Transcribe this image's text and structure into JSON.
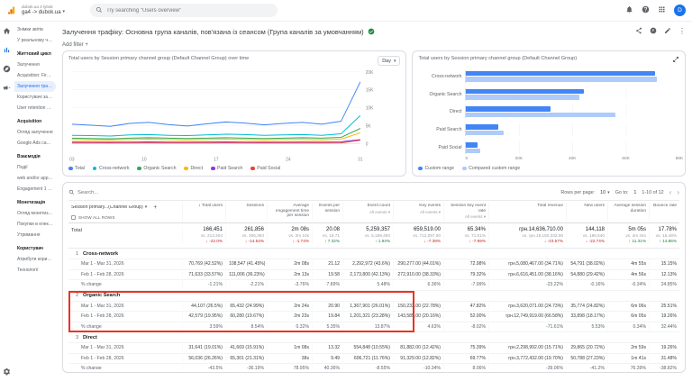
{
  "colors": {
    "accent": "#1a73e8",
    "positive": "#188038",
    "negative": "#c5221f",
    "bar_current": "#4285f4",
    "bar_compared": "#aecbfa",
    "annotation": "#ea3323"
  },
  "topbar": {
    "account_line1": "dubok.ua 3 lybok",
    "account_line2": "ga4 -> dubok.ua",
    "search_placeholder": "Try searching \"Users overview\"",
    "avatar_initial": "D"
  },
  "sidebar": {
    "items": [
      {
        "label": "Знімки звітів",
        "type": "item"
      },
      {
        "label": "У реальному часі",
        "type": "item"
      },
      {
        "label": "Життєвий цикл",
        "type": "section"
      },
      {
        "label": "Залучення",
        "type": "item"
      },
      {
        "label": "Acquisition: First user ...",
        "type": "item"
      },
      {
        "label": "Залучення трафіку: Осн...",
        "type": "item",
        "active": true
      },
      {
        "label": "Користувачі за регіона...",
        "type": "item"
      },
      {
        "label": "User retention cohorts",
        "type": "item"
      },
      {
        "label": "Acquisition",
        "type": "section"
      },
      {
        "label": "Огляд залучення",
        "type": "item"
      },
      {
        "label": "Google Ads campaign",
        "type": "item"
      },
      {
        "label": "Взаємодія",
        "type": "section"
      },
      {
        "label": "Події",
        "type": "item"
      },
      {
        "label": "web and/or app 1 ...",
        "type": "item"
      },
      {
        "label": "Engagement 1 се...",
        "type": "item"
      },
      {
        "label": "Монетизація",
        "type": "section"
      },
      {
        "label": "Огляд монетизації",
        "type": "item"
      },
      {
        "label": "Покупки в електрон...",
        "type": "item"
      },
      {
        "label": "Утримання",
        "type": "item"
      },
      {
        "label": "Користувач",
        "type": "section"
      },
      {
        "label": "Атрибути користув...",
        "type": "item"
      },
      {
        "label": "Технології",
        "type": "item"
      }
    ]
  },
  "report": {
    "title": "Залучення трафіку: Основна група каналів, пов'язана із сеансом (Група каналів за умовчанням)",
    "add_filter_label": "Add filter +"
  },
  "chart_data": [
    {
      "type": "line",
      "title": "Total users by Session primary channel group (Default Channel Group) over time",
      "granularity": "Day",
      "x": [
        "03",
        "10",
        "17",
        "24",
        "31"
      ],
      "ylim": [
        0,
        20000
      ],
      "yticks": [
        "0",
        "5K",
        "10K",
        "15K",
        "20K"
      ],
      "legend_position": "bottom",
      "series": [
        {
          "name": "Total",
          "color": "#4285f4",
          "values": [
            5400,
            5100,
            4800,
            5600,
            5900,
            5300,
            4900,
            5500,
            6000,
            5700,
            5200,
            5600,
            5900,
            5400,
            6200,
            17200
          ]
        },
        {
          "name": "Cross-network",
          "color": "#03bcd4",
          "values": [
            2300,
            2200,
            2100,
            2400,
            2500,
            2300,
            2200,
            2400,
            2600,
            2500,
            2300,
            2400,
            2500,
            2300,
            2700,
            7800
          ]
        },
        {
          "name": "Organic Search",
          "color": "#34a853",
          "values": [
            1500,
            1400,
            1300,
            1500,
            1600,
            1500,
            1400,
            1500,
            1600,
            1500,
            1400,
            1500,
            1600,
            1500,
            1700,
            4200
          ]
        },
        {
          "name": "Direct",
          "color": "#fbbc04",
          "values": [
            1100,
            1000,
            1000,
            1100,
            1200,
            1100,
            1000,
            1100,
            1200,
            1100,
            1000,
            1100,
            1100,
            1000,
            1200,
            3000
          ]
        },
        {
          "name": "Paid Search",
          "color": "#9334e6",
          "values": [
            420,
            400,
            360,
            410,
            450,
            400,
            390,
            420,
            450,
            410,
            380,
            400,
            420,
            400,
            450,
            1100
          ]
        },
        {
          "name": "Paid Social",
          "color": "#ea4335",
          "values": [
            150,
            140,
            130,
            150,
            160,
            150,
            140,
            150,
            160,
            150,
            140,
            150,
            150,
            140,
            160,
            900
          ]
        }
      ]
    },
    {
      "type": "bar",
      "orientation": "horizontal",
      "title": "Total users by Session primary channel group (Default Channel Group)",
      "categories": [
        "Cross-network",
        "Organic Search",
        "Direct",
        "Paid Search",
        "Paid Social"
      ],
      "xlim": [
        0,
        80000
      ],
      "xticks": [
        "0",
        "20K",
        "40K",
        "60K",
        "80K"
      ],
      "series": [
        {
          "name": "Custom range",
          "color": "#4285f4",
          "values": [
            70769,
            44107,
            31641,
            12064,
            4387
          ]
        },
        {
          "name": "Compared custom range",
          "color": "#aecbfa",
          "values": [
            71633,
            42579,
            56036,
            13885,
            5196
          ]
        }
      ]
    }
  ],
  "table": {
    "search_placeholder": "Search...",
    "rows_per_page_label": "Rows per page:",
    "rows_per_page_value": "10",
    "goto_label": "Go to:",
    "goto_value": "1",
    "range_label": "1-10 of 12",
    "dimension_header": "Session primary...(Channel Group)",
    "show_all_rows_label": "SHOW ALL ROWS",
    "columns": [
      {
        "label": "Total users",
        "sorted": true
      },
      {
        "label": "Sessions"
      },
      {
        "label": "Average engagement time per session"
      },
      {
        "label": "Events per session"
      },
      {
        "label": "Event count",
        "sub": "All events"
      },
      {
        "label": "Key events",
        "sub": "All events"
      },
      {
        "label": "Session key event rate",
        "sub": "All events"
      },
      {
        "label": "Total revenue"
      },
      {
        "label": "New users"
      },
      {
        "label": "Average session duration"
      },
      {
        "label": "Bounce rate"
      }
    ],
    "total_row": {
      "label": "Total",
      "cells": [
        {
          "v": "166,451",
          "vs": "vs. 213,404",
          "chg": "-22.0%",
          "dir": "down"
        },
        {
          "v": "261,856",
          "vs": "vs. 306,393",
          "chg": "-14.54%",
          "dir": "down"
        },
        {
          "v": "2m 08s",
          "vs": "vs. 2m 10s",
          "chg": "-1.74%",
          "dir": "down"
        },
        {
          "v": "20.08",
          "vs": "vs. 18.71",
          "chg": "7.32%",
          "dir": "up"
        },
        {
          "v": "5,259,357",
          "vs": "vs. 5,159,483",
          "chg": "1.94%",
          "dir": "up"
        },
        {
          "v": "659,519.00",
          "vs": "vs. 712,097.00",
          "chg": "-7.38%",
          "dir": "down"
        },
        {
          "v": "65.34%",
          "vs": "vs. 71.01%",
          "chg": "-7.99%",
          "dir": "down"
        },
        {
          "v": "грн.14,636,710.00",
          "vs": "vs. грн.19,150,332.00",
          "chg": "-23.57%",
          "dir": "down"
        },
        {
          "v": "144,118",
          "vs": "vs. 186,540",
          "chg": "-22.74%",
          "dir": "down"
        },
        {
          "v": "5m 05s",
          "vs": "vs. 4m 34s",
          "chg": "11.31%",
          "dir": "up"
        },
        {
          "v": "17.78%",
          "vs": "vs. 15.48%",
          "chg": "14.86%",
          "dir": "up"
        }
      ]
    },
    "groups": [
      {
        "index": "1",
        "name": "Cross-network",
        "annotated": false,
        "rows": [
          {
            "label": "Mar 1 - Mar 31, 2026",
            "cells": [
              "70,769 (42.52%)",
              "108,547 (41.45%)",
              "2m 08s",
              "21.12",
              "2,292,972 (43.6%)",
              "290,277.00 (44.01%)",
              "72.98%",
              "грн.5,080,467.00 (34.71%)",
              "54,791 (38.02%)",
              "4m 55s",
              "15.15%"
            ]
          },
          {
            "label": "Feb 1 - Feb 28, 2026",
            "cells": [
              "71,633 (33.57%)",
              "111,006 (36.23%)",
              "2m 13s",
              "19.58",
              "2,173,800 (42.13%)",
              "272,910.00 (38.33%)",
              "79.32%",
              "грн.6,616,451.00 (38.16%)",
              "54,880 (29.42%)",
              "4m 56s",
              "12.13%"
            ]
          },
          {
            "label": "% change",
            "cells": [
              "-1.21%",
              "-2.21%",
              "-3.76%",
              "7.89%",
              "5.48%",
              "6.36%",
              "-7.99%",
              "-23.22%",
              "-0.16%",
              "-0.34%",
              "24.85%"
            ]
          }
        ]
      },
      {
        "index": "2",
        "name": "Organic Search",
        "annotated": true,
        "rows": [
          {
            "label": "Mar 1 - Mar 31, 2026",
            "cells": [
              "44,107 (26.5%)",
              "65,432 (24.99%)",
              "2m 24s",
              "20.90",
              "1,367,901 (26.01%)",
              "150,232.00 (22.78%)",
              "47.82%",
              "грн.3,620,071.00 (24.73%)",
              "35,774 (24.82%)",
              "6m 06s",
              "25.51%"
            ]
          },
          {
            "label": "Feb 1 - Feb 28, 2026",
            "cells": [
              "42,579 (19.95%)",
              "60,280 (19.67%)",
              "2m 23s",
              "19.84",
              "1,201,321 (23.28%)",
              "143,585.00 (20.16%)",
              "52.00%",
              "грн.12,749,919.00 (66.58%)",
              "33,898 (18.17%)",
              "6m 05s",
              "19.26%"
            ]
          },
          {
            "label": "% change",
            "cells": [
              "3.59%",
              "8.54%",
              "0.32%",
              "5.35%",
              "13.87%",
              "4.63%",
              "-8.02%",
              "-71.61%",
              "5.53%",
              "0.34%",
              "32.44%"
            ]
          }
        ]
      },
      {
        "index": "3",
        "name": "Direct",
        "annotated": false,
        "rows": [
          {
            "label": "Mar 1 - Mar 31, 2026",
            "cells": [
              "31,641 (19.01%)",
              "41,669 (15.91%)",
              "1m 08s",
              "13.32",
              "554,848 (10.55%)",
              "81,882.00 (12.42%)",
              "75.39%",
              "грн.2,298,992.00 (15.71%)",
              "29,865 (20.72%)",
              "2m 59s",
              "19.26%"
            ]
          },
          {
            "label": "Feb 1 - Feb 28, 2026",
            "cells": [
              "56,036 (26.26%)",
              "65,301 (21.31%)",
              "38s",
              "9.49",
              "606,721 (11.76%)",
              "91,329.00 (12.82%)",
              "69.77%",
              "грн.3,772,432.00 (19.70%)",
              "50,788 (27.23%)",
              "1m 41s",
              "31.48%"
            ]
          },
          {
            "label": "% change",
            "cells": [
              "-43.5%",
              "-36.19%",
              "78.95%",
              "40.36%",
              "-8.55%",
              "-10.34%",
              "8.06%",
              "-39.06%",
              "-41.2%",
              "76.39%",
              "-38.82%"
            ]
          }
        ]
      }
    ]
  }
}
